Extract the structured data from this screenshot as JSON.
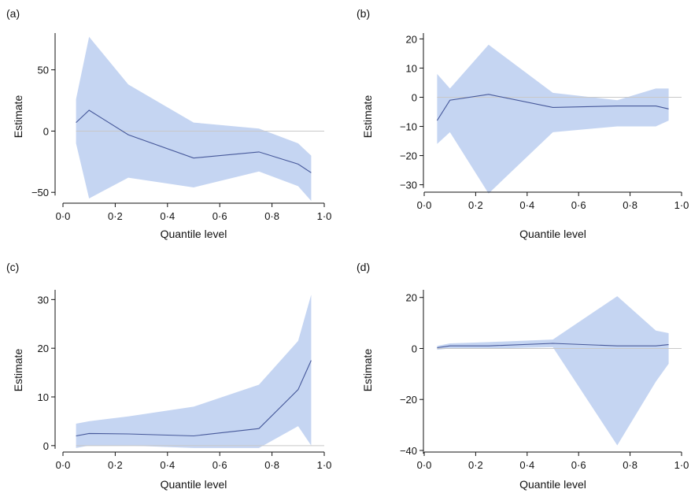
{
  "chart_data": [
    {
      "panel_label": "(a)",
      "type": "area",
      "xlabel": "Quantile level",
      "ylabel": "Estimate",
      "xlim": [
        0,
        1
      ],
      "ylim": [
        -55,
        80
      ],
      "xticks": [
        "0·0",
        "0·2",
        "0·4",
        "0·6",
        "0·8",
        "1·0"
      ],
      "yticks": [
        "50",
        "0",
        "−50"
      ],
      "ytick_values": [
        50,
        0,
        -50
      ],
      "x": [
        0.05,
        0.1,
        0.25,
        0.5,
        0.75,
        0.9,
        0.95
      ],
      "estimate": [
        7,
        17,
        -3,
        -22,
        -17,
        -27,
        -34
      ],
      "lower": [
        -10,
        -55,
        -38,
        -46,
        -33,
        -45,
        -57
      ],
      "upper": [
        26,
        77,
        38,
        7,
        2,
        -10,
        -20
      ]
    },
    {
      "panel_label": "(b)",
      "type": "area",
      "xlabel": "Quantile level",
      "ylabel": "Estimate",
      "xlim": [
        0,
        1
      ],
      "ylim": [
        -32,
        22
      ],
      "xticks": [
        "0·0",
        "0·2",
        "0·4",
        "0·6",
        "0·8",
        "1·0"
      ],
      "yticks": [
        "20",
        "10",
        "0",
        "−10",
        "−20",
        "−30"
      ],
      "ytick_values": [
        20,
        10,
        0,
        -10,
        -20,
        -30
      ],
      "x": [
        0.05,
        0.1,
        0.25,
        0.5,
        0.75,
        0.9,
        0.95
      ],
      "estimate": [
        -8,
        -1,
        1,
        -3.5,
        -3,
        -3,
        -4
      ],
      "lower": [
        -16,
        -12,
        -33,
        -12,
        -10,
        -10,
        -8
      ],
      "upper": [
        8,
        3,
        18,
        1.5,
        -1,
        3,
        3
      ]
    },
    {
      "panel_label": "(c)",
      "type": "area",
      "xlabel": "Quantile level",
      "ylabel": "Estimate",
      "xlim": [
        0,
        1
      ],
      "ylim": [
        -1,
        32
      ],
      "xticks": [
        "0·0",
        "0·2",
        "0·4",
        "0·6",
        "0·8",
        "1·0"
      ],
      "yticks": [
        "30",
        "20",
        "10",
        "0"
      ],
      "ytick_values": [
        30,
        20,
        10,
        0
      ],
      "x": [
        0.05,
        0.1,
        0.25,
        0.5,
        0.75,
        0.9,
        0.95
      ],
      "estimate": [
        2,
        2.5,
        2.4,
        2,
        3.5,
        11.5,
        17.5
      ],
      "lower": [
        -0.5,
        0,
        0,
        -0.5,
        -0.5,
        4,
        0
      ],
      "upper": [
        4.5,
        5,
        6,
        8,
        12.5,
        21.5,
        31
      ]
    },
    {
      "panel_label": "(d)",
      "type": "area",
      "xlabel": "Quantile level",
      "ylabel": "Estimate",
      "xlim": [
        0,
        1
      ],
      "ylim": [
        -40,
        23
      ],
      "xticks": [
        "0·0",
        "0·2",
        "0·4",
        "0·6",
        "0·8",
        "1·0"
      ],
      "yticks": [
        "20",
        "0",
        "−20",
        "−40"
      ],
      "ytick_values": [
        20,
        0,
        -20,
        -40
      ],
      "x": [
        0.05,
        0.1,
        0.25,
        0.5,
        0.75,
        0.9,
        0.95
      ],
      "estimate": [
        0.3,
        1,
        1,
        2,
        1,
        1,
        1.5
      ],
      "lower": [
        -0.5,
        0,
        0,
        0.5,
        -38,
        -13,
        -6
      ],
      "upper": [
        1,
        2,
        2.5,
        3.5,
        20.5,
        7,
        6
      ]
    }
  ]
}
